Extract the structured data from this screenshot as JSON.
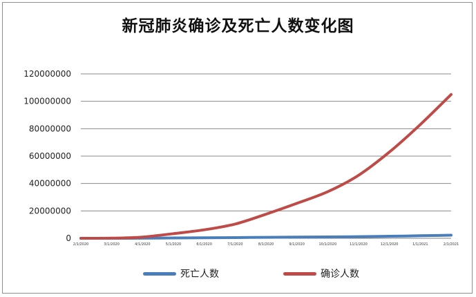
{
  "chart_data": {
    "type": "line",
    "title": "新冠肺炎确诊及死亡人数变化图",
    "xlabel": "",
    "ylabel": "",
    "ylim": [
      0,
      120000000
    ],
    "yticks": [
      0,
      20000000,
      40000000,
      60000000,
      80000000,
      100000000,
      120000000
    ],
    "ytick_labels": [
      "0",
      "20000000",
      "40000000",
      "60000000",
      "80000000",
      "100000000",
      "120000000"
    ],
    "x_tick_labels": [
      "2/1/2020",
      "3/1/2020",
      "4/1/2020",
      "5/1/2020",
      "6/1/2020",
      "7/1/2020",
      "8/1/2020",
      "9/1/2020",
      "10/1/2020",
      "11/1/2020",
      "12/1/2020",
      "1/1/2021",
      "2/1/2021"
    ],
    "grid": true,
    "legend_position": "bottom",
    "series": [
      {
        "name": "死亡人数",
        "color": "#4a7ebb",
        "values": [
          300,
          3000,
          50000,
          240000,
          380000,
          510000,
          690000,
          860000,
          1020000,
          1200000,
          1500000,
          1850000,
          2270000
        ]
      },
      {
        "name": "确诊人数",
        "color": "#be4b48",
        "values": [
          10000,
          90000,
          900000,
          3400000,
          6200000,
          10400000,
          17600000,
          25500000,
          34000000,
          46000000,
          63000000,
          83000000,
          105000000
        ]
      }
    ]
  }
}
